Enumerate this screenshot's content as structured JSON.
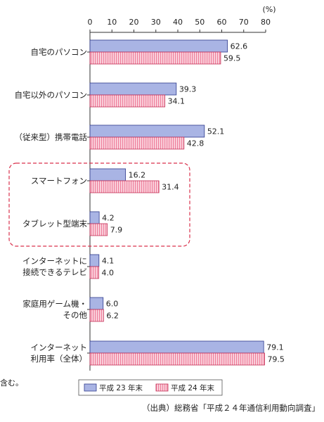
{
  "chart_data": {
    "type": "bar",
    "orientation": "horizontal",
    "unit_label": "(%)",
    "xlim": [
      0,
      80
    ],
    "x_ticks": [
      "0",
      "10",
      "20",
      "30",
      "40",
      "50",
      "60",
      "70",
      "80"
    ],
    "categories": [
      [
        "自宅のパソコン"
      ],
      [
        "自宅以外のパソコン"
      ],
      [
        "（従来型）携帯電話"
      ],
      [
        "スマートフォン"
      ],
      [
        "タブレット型端末"
      ],
      [
        "インターネットに",
        "接続できるテレビ"
      ],
      [
        "家庭用ゲーム機・",
        "その他"
      ],
      [
        "インターネット",
        "利用率（全体）"
      ]
    ],
    "series": [
      {
        "name": "平成 23 年末",
        "color": "#a9b4e4",
        "stroke": "#2e3a8c",
        "pattern": "solid",
        "values": [
          62.6,
          39.3,
          52.1,
          16.2,
          4.2,
          4.1,
          6.0,
          79.1
        ],
        "labels": [
          "62.6",
          "39.3",
          "52.1",
          "16.2",
          "4.2",
          "4.1",
          "6.0",
          "79.1"
        ]
      },
      {
        "name": "平成 24 年末",
        "color": "#f7a6b8",
        "stroke": "#c42f56",
        "pattern": "vertical-stripes",
        "values": [
          59.5,
          34.1,
          42.8,
          31.4,
          7.9,
          4.0,
          6.2,
          79.5
        ],
        "labels": [
          "59.5",
          "34.1",
          "42.8",
          "31.4",
          "7.9",
          "4.0",
          "6.2",
          "79.5"
        ]
      }
    ],
    "highlight": {
      "categories": [
        3,
        4
      ],
      "style": "dashed",
      "color": "#d9314c"
    },
    "legend_position": "bottom",
    "grid": false
  },
  "footnote_fragment": "含む。",
  "source": "（出典）総務省「平成２４年通信利用動向調査」"
}
